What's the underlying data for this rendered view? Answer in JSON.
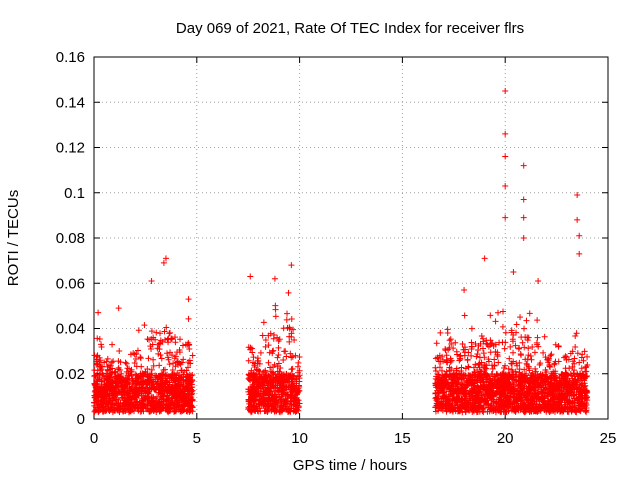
{
  "chart_data": {
    "type": "scatter",
    "title": "Day 069 of 2021, Rate Of TEC Index for receiver flrs",
    "xlabel": "GPS time / hours",
    "ylabel": "ROTI / TECUs",
    "xlim": [
      0,
      25
    ],
    "ylim": [
      0,
      0.16
    ],
    "xticks": [
      0,
      5,
      10,
      15,
      20,
      25
    ],
    "yticks": [
      0,
      0.02,
      0.04,
      0.06,
      0.08,
      0.1,
      0.12,
      0.14,
      0.16
    ],
    "xtick_labels": [
      "0",
      "5",
      "10",
      "15",
      "20",
      "25"
    ],
    "ytick_labels": [
      "0",
      "0.02",
      "0.04",
      "0.06",
      "0.08",
      "0.1",
      "0.12",
      "0.14",
      "0.16"
    ],
    "grid": true,
    "marker": "+",
    "marker_color": "#ff0000",
    "observation_windows": [
      {
        "start": 0.0,
        "end": 4.8
      },
      {
        "start": 7.5,
        "end": 10.0
      },
      {
        "start": 16.6,
        "end": 24.0
      }
    ],
    "notable_points": [
      {
        "x": 20.0,
        "y": 0.145
      },
      {
        "x": 20.0,
        "y": 0.126
      },
      {
        "x": 20.0,
        "y": 0.116
      },
      {
        "x": 20.0,
        "y": 0.103
      },
      {
        "x": 20.0,
        "y": 0.089
      },
      {
        "x": 20.9,
        "y": 0.112
      },
      {
        "x": 20.9,
        "y": 0.097
      },
      {
        "x": 20.9,
        "y": 0.089
      },
      {
        "x": 20.9,
        "y": 0.08
      },
      {
        "x": 23.5,
        "y": 0.099
      },
      {
        "x": 23.5,
        "y": 0.088
      },
      {
        "x": 23.6,
        "y": 0.081
      },
      {
        "x": 23.6,
        "y": 0.073
      },
      {
        "x": 19.0,
        "y": 0.071
      },
      {
        "x": 3.5,
        "y": 0.071
      },
      {
        "x": 3.4,
        "y": 0.069
      },
      {
        "x": 9.6,
        "y": 0.068
      },
      {
        "x": 2.8,
        "y": 0.061
      },
      {
        "x": 7.6,
        "y": 0.063
      },
      {
        "x": 8.8,
        "y": 0.062
      },
      {
        "x": 4.6,
        "y": 0.053
      },
      {
        "x": 1.2,
        "y": 0.049
      },
      {
        "x": 0.2,
        "y": 0.047
      },
      {
        "x": 20.4,
        "y": 0.065
      },
      {
        "x": 21.6,
        "y": 0.061
      },
      {
        "x": 18.0,
        "y": 0.057
      }
    ],
    "envelope_profile": [
      [
        0.0,
        0.035
      ],
      [
        0.5,
        0.032
      ],
      [
        1.0,
        0.03
      ],
      [
        1.5,
        0.032
      ],
      [
        2.0,
        0.036
      ],
      [
        2.5,
        0.04
      ],
      [
        3.0,
        0.046
      ],
      [
        3.5,
        0.052
      ],
      [
        4.0,
        0.038
      ],
      [
        4.5,
        0.04
      ],
      [
        4.8,
        0.045
      ],
      [
        7.5,
        0.04
      ],
      [
        8.0,
        0.038
      ],
      [
        8.5,
        0.042
      ],
      [
        9.0,
        0.05
      ],
      [
        9.5,
        0.054
      ],
      [
        10.0,
        0.038
      ],
      [
        16.6,
        0.035
      ],
      [
        17.0,
        0.038
      ],
      [
        17.5,
        0.042
      ],
      [
        18.0,
        0.045
      ],
      [
        18.5,
        0.04
      ],
      [
        19.0,
        0.042
      ],
      [
        19.5,
        0.048
      ],
      [
        20.0,
        0.055
      ],
      [
        20.5,
        0.05
      ],
      [
        21.0,
        0.045
      ],
      [
        21.5,
        0.042
      ],
      [
        22.0,
        0.032
      ],
      [
        22.5,
        0.03
      ],
      [
        23.0,
        0.035
      ],
      [
        23.5,
        0.04
      ],
      [
        24.0,
        0.028
      ]
    ],
    "baseline_floor": 0.003
  }
}
